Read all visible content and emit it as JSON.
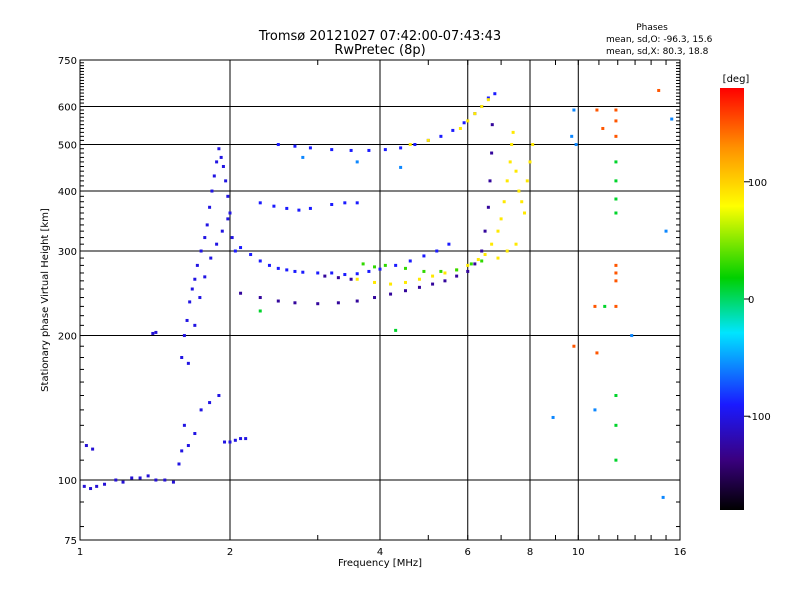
{
  "chart_data": {
    "type": "scatter",
    "title": "Tromsø 20121027 07:42:00-07:43:43",
    "subtitle": "RwPretec (8p)",
    "xlabel": "Frequency [MHz]",
    "ylabel": "Stationary phase Virtual Height [km]",
    "x_scale": "log",
    "y_scale": "log",
    "xlim": [
      1,
      16
    ],
    "ylim": [
      75,
      750
    ],
    "x_ticks": [
      1,
      2,
      4,
      6,
      8,
      10,
      16
    ],
    "y_ticks": [
      75,
      100,
      200,
      300,
      400,
      500,
      600,
      750
    ],
    "grid": true,
    "stats": {
      "heading": "Phases",
      "line_o": "mean, sd,O: -96.3, 15.6",
      "line_x": "mean, sd,X:  80.3, 18.8"
    },
    "colorbar": {
      "label": "[deg]",
      "ticks": [
        100,
        0,
        -100
      ],
      "range": [
        -180,
        180
      ]
    },
    "series": [
      {
        "phase": -110,
        "points": [
          [
            1.02,
            97
          ],
          [
            1.05,
            96
          ],
          [
            1.08,
            97
          ],
          [
            1.12,
            98
          ],
          [
            1.18,
            100
          ],
          [
            1.22,
            99
          ],
          [
            1.27,
            101
          ],
          [
            1.32,
            101
          ],
          [
            1.37,
            102
          ],
          [
            1.42,
            100
          ],
          [
            1.48,
            100
          ],
          [
            1.54,
            99
          ],
          [
            1.03,
            118
          ],
          [
            1.06,
            116
          ],
          [
            1.4,
            202
          ],
          [
            1.42,
            203
          ]
        ]
      },
      {
        "phase": -105,
        "points": [
          [
            1.6,
            180
          ],
          [
            1.62,
            200
          ],
          [
            1.64,
            215
          ],
          [
            1.66,
            235
          ],
          [
            1.68,
            250
          ],
          [
            1.7,
            262
          ],
          [
            1.72,
            280
          ],
          [
            1.75,
            300
          ],
          [
            1.78,
            320
          ],
          [
            1.8,
            340
          ],
          [
            1.82,
            370
          ],
          [
            1.84,
            400
          ],
          [
            1.86,
            430
          ],
          [
            1.88,
            460
          ],
          [
            1.9,
            490
          ],
          [
            1.92,
            470
          ],
          [
            1.94,
            450
          ],
          [
            1.96,
            420
          ],
          [
            1.98,
            390
          ],
          [
            2.0,
            360
          ],
          [
            1.65,
            175
          ],
          [
            1.7,
            210
          ],
          [
            1.74,
            240
          ],
          [
            1.78,
            265
          ],
          [
            1.83,
            290
          ],
          [
            1.88,
            310
          ],
          [
            1.93,
            330
          ],
          [
            1.98,
            350
          ],
          [
            2.02,
            320
          ],
          [
            1.62,
            130
          ],
          [
            1.65,
            118
          ],
          [
            1.7,
            125
          ],
          [
            1.75,
            140
          ],
          [
            1.82,
            145
          ],
          [
            1.9,
            150
          ],
          [
            1.95,
            120
          ],
          [
            2.0,
            120
          ],
          [
            2.05,
            121
          ],
          [
            2.1,
            122
          ],
          [
            2.15,
            122
          ],
          [
            1.6,
            115
          ],
          [
            1.58,
            108
          ]
        ]
      },
      {
        "phase": -95,
        "points": [
          [
            2.05,
            300
          ],
          [
            2.1,
            305
          ],
          [
            2.2,
            295
          ],
          [
            2.3,
            286
          ],
          [
            2.4,
            280
          ],
          [
            2.5,
            276
          ],
          [
            2.6,
            274
          ],
          [
            2.7,
            272
          ],
          [
            2.8,
            271
          ],
          [
            3.0,
            270
          ],
          [
            3.2,
            270
          ],
          [
            3.4,
            268
          ],
          [
            3.6,
            269
          ],
          [
            3.8,
            272
          ],
          [
            4.0,
            275
          ],
          [
            4.3,
            280
          ],
          [
            4.6,
            286
          ],
          [
            4.9,
            293
          ],
          [
            5.2,
            300
          ],
          [
            5.5,
            310
          ],
          [
            2.3,
            378
          ],
          [
            2.45,
            372
          ],
          [
            2.6,
            368
          ],
          [
            2.75,
            365
          ],
          [
            2.9,
            368
          ],
          [
            3.2,
            375
          ],
          [
            3.4,
            378
          ],
          [
            3.6,
            378
          ],
          [
            2.5,
            500
          ],
          [
            2.7,
            496
          ],
          [
            2.9,
            492
          ],
          [
            3.2,
            488
          ],
          [
            3.5,
            486
          ],
          [
            3.8,
            486
          ],
          [
            4.1,
            488
          ],
          [
            4.4,
            492
          ],
          [
            4.7,
            500
          ],
          [
            5.0,
            510
          ],
          [
            5.3,
            520
          ],
          [
            5.6,
            535
          ],
          [
            5.9,
            555
          ],
          [
            6.2,
            580
          ],
          [
            6.4,
            600
          ],
          [
            6.6,
            625
          ],
          [
            6.8,
            638
          ]
        ]
      },
      {
        "phase": -130,
        "points": [
          [
            2.1,
            245
          ],
          [
            2.3,
            240
          ],
          [
            2.5,
            236
          ],
          [
            2.7,
            234
          ],
          [
            3.0,
            233
          ],
          [
            3.3,
            234
          ],
          [
            3.6,
            236
          ],
          [
            3.9,
            240
          ],
          [
            4.2,
            244
          ],
          [
            4.5,
            248
          ],
          [
            4.8,
            252
          ],
          [
            5.1,
            256
          ],
          [
            5.4,
            260
          ],
          [
            5.7,
            266
          ],
          [
            6.0,
            272
          ],
          [
            6.2,
            282
          ],
          [
            6.4,
            300
          ],
          [
            6.5,
            330
          ],
          [
            6.6,
            370
          ],
          [
            6.65,
            420
          ],
          [
            6.7,
            480
          ],
          [
            6.72,
            550
          ],
          [
            3.1,
            266
          ],
          [
            3.3,
            264
          ],
          [
            3.5,
            262
          ]
        ]
      },
      {
        "phase": 90,
        "points": [
          [
            3.6,
            262
          ],
          [
            3.9,
            258
          ],
          [
            4.2,
            256
          ],
          [
            4.5,
            258
          ],
          [
            4.8,
            262
          ],
          [
            5.1,
            266
          ],
          [
            5.4,
            270
          ],
          [
            5.7,
            274
          ],
          [
            6.0,
            280
          ],
          [
            6.3,
            288
          ],
          [
            6.5,
            295
          ],
          [
            6.7,
            310
          ],
          [
            6.9,
            330
          ],
          [
            7.0,
            350
          ],
          [
            7.1,
            380
          ],
          [
            7.2,
            420
          ],
          [
            7.3,
            460
          ],
          [
            7.35,
            500
          ],
          [
            7.4,
            530
          ],
          [
            7.5,
            440
          ],
          [
            7.6,
            400
          ],
          [
            7.7,
            380
          ],
          [
            7.8,
            360
          ],
          [
            7.9,
            420
          ],
          [
            8.0,
            460
          ],
          [
            8.1,
            500
          ],
          [
            6.9,
            290
          ],
          [
            7.2,
            300
          ],
          [
            7.5,
            310
          ],
          [
            5.8,
            540
          ],
          [
            6.0,
            560
          ],
          [
            6.2,
            580
          ],
          [
            6.4,
            600
          ],
          [
            6.6,
            620
          ],
          [
            5.0,
            510
          ],
          [
            4.6,
            500
          ]
        ]
      },
      {
        "phase": 30,
        "points": [
          [
            4.1,
            280
          ],
          [
            4.5,
            276
          ],
          [
            4.9,
            272
          ],
          [
            5.3,
            272
          ],
          [
            5.7,
            274
          ],
          [
            6.1,
            282
          ],
          [
            6.4,
            286
          ],
          [
            3.7,
            282
          ],
          [
            3.9,
            278
          ]
        ]
      },
      {
        "phase": 150,
        "points": [
          [
            11.9,
            590
          ],
          [
            11.9,
            560
          ],
          [
            11.9,
            520
          ],
          [
            11.9,
            280
          ],
          [
            11.9,
            270
          ],
          [
            11.9,
            260
          ],
          [
            11.9,
            230
          ],
          [
            10.9,
            590
          ],
          [
            11.2,
            540
          ],
          [
            10.8,
            230
          ],
          [
            10.9,
            184
          ],
          [
            9.8,
            190
          ],
          [
            14.5,
            648
          ]
        ]
      },
      {
        "phase": 10,
        "points": [
          [
            11.9,
            460
          ],
          [
            11.9,
            420
          ],
          [
            11.9,
            385
          ],
          [
            11.9,
            360
          ],
          [
            11.9,
            150
          ],
          [
            11.9,
            130
          ],
          [
            11.9,
            110
          ],
          [
            11.3,
            230
          ],
          [
            2.3,
            225
          ],
          [
            4.3,
            205
          ]
        ]
      },
      {
        "phase": -60,
        "points": [
          [
            9.8,
            590
          ],
          [
            9.9,
            500
          ],
          [
            9.7,
            520
          ],
          [
            10.8,
            140
          ],
          [
            12.8,
            200
          ],
          [
            15.0,
            330
          ],
          [
            15.4,
            565
          ],
          [
            14.8,
            92
          ],
          [
            8.9,
            135
          ],
          [
            4.4,
            448
          ],
          [
            3.6,
            460
          ],
          [
            2.8,
            470
          ]
        ]
      }
    ]
  }
}
